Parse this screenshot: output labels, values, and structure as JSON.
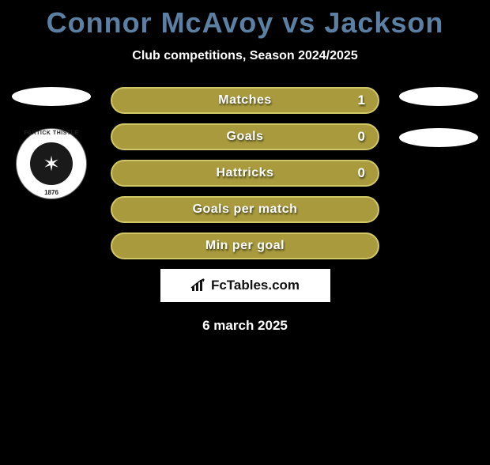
{
  "title": "Connor McAvoy vs Jackson",
  "title_color": "#5c80a3",
  "subtitle": "Club competitions, Season 2024/2025",
  "background_color": "#000000",
  "stats": [
    {
      "label": "Matches",
      "value_right": "1",
      "bg": "#a89a3d",
      "border": "#d1c766",
      "show_value": true
    },
    {
      "label": "Goals",
      "value_right": "0",
      "bg": "#a89a3d",
      "border": "#d1c766",
      "show_value": true
    },
    {
      "label": "Hattricks",
      "value_right": "0",
      "bg": "#a89a3d",
      "border": "#d1c766",
      "show_value": true
    },
    {
      "label": "Goals per match",
      "value_right": "",
      "bg": "#a89a3d",
      "border": "#d1c766",
      "show_value": false
    },
    {
      "label": "Min per goal",
      "value_right": "",
      "bg": "#a89a3d",
      "border": "#d1c766",
      "show_value": false
    }
  ],
  "crest": {
    "top_text": "PARTICK THISTLE",
    "bottom_text": "1876",
    "symbol": "✶"
  },
  "branding": {
    "text": "FcTables.com"
  },
  "date": "6 march 2025",
  "oval_color": "#ffffff"
}
